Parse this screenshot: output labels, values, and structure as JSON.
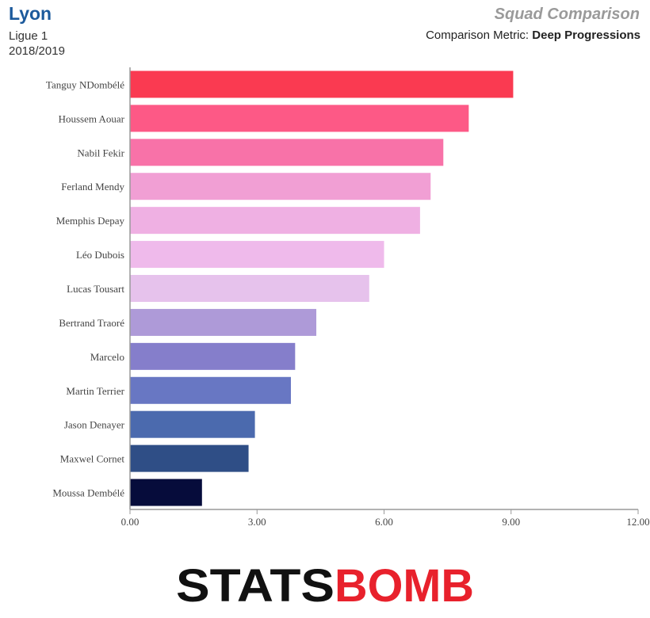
{
  "header": {
    "team": "Lyon",
    "league": "Ligue 1",
    "season": "2018/2019",
    "title": "Squad Comparison",
    "metric_label": "Comparison Metric:",
    "metric_value": "Deep Progressions"
  },
  "logo": {
    "part1": "STATS",
    "part2": "BOMB"
  },
  "chart_data": {
    "type": "bar",
    "orientation": "horizontal",
    "categories": [
      "Tanguy NDombélé",
      "Houssem Aouar",
      "Nabil Fekir",
      "Ferland Mendy",
      "Memphis Depay",
      "Léo Dubois",
      "Lucas Tousart",
      "Bertrand Traoré",
      "Marcelo",
      "Martin Terrier",
      "Jason Denayer",
      "Maxwel Cornet",
      "Moussa Dembélé"
    ],
    "values": [
      9.05,
      8.0,
      7.4,
      7.1,
      6.85,
      6.0,
      5.65,
      4.4,
      3.9,
      3.8,
      2.95,
      2.8,
      1.7
    ],
    "colors": [
      "#fa3a51",
      "#fd5986",
      "#f872a8",
      "#f19fd4",
      "#efb0e3",
      "#efbaeb",
      "#e6c2ec",
      "#ae9ad8",
      "#857ecb",
      "#6877c3",
      "#4b6aae",
      "#2f4e86",
      "#060c3b"
    ],
    "xlim": [
      0,
      12
    ],
    "ticks": [
      0,
      3,
      6,
      9,
      12
    ],
    "tick_labels": [
      "0.00",
      "3.00",
      "6.00",
      "9.00",
      "12.00"
    ],
    "grid": false
  }
}
